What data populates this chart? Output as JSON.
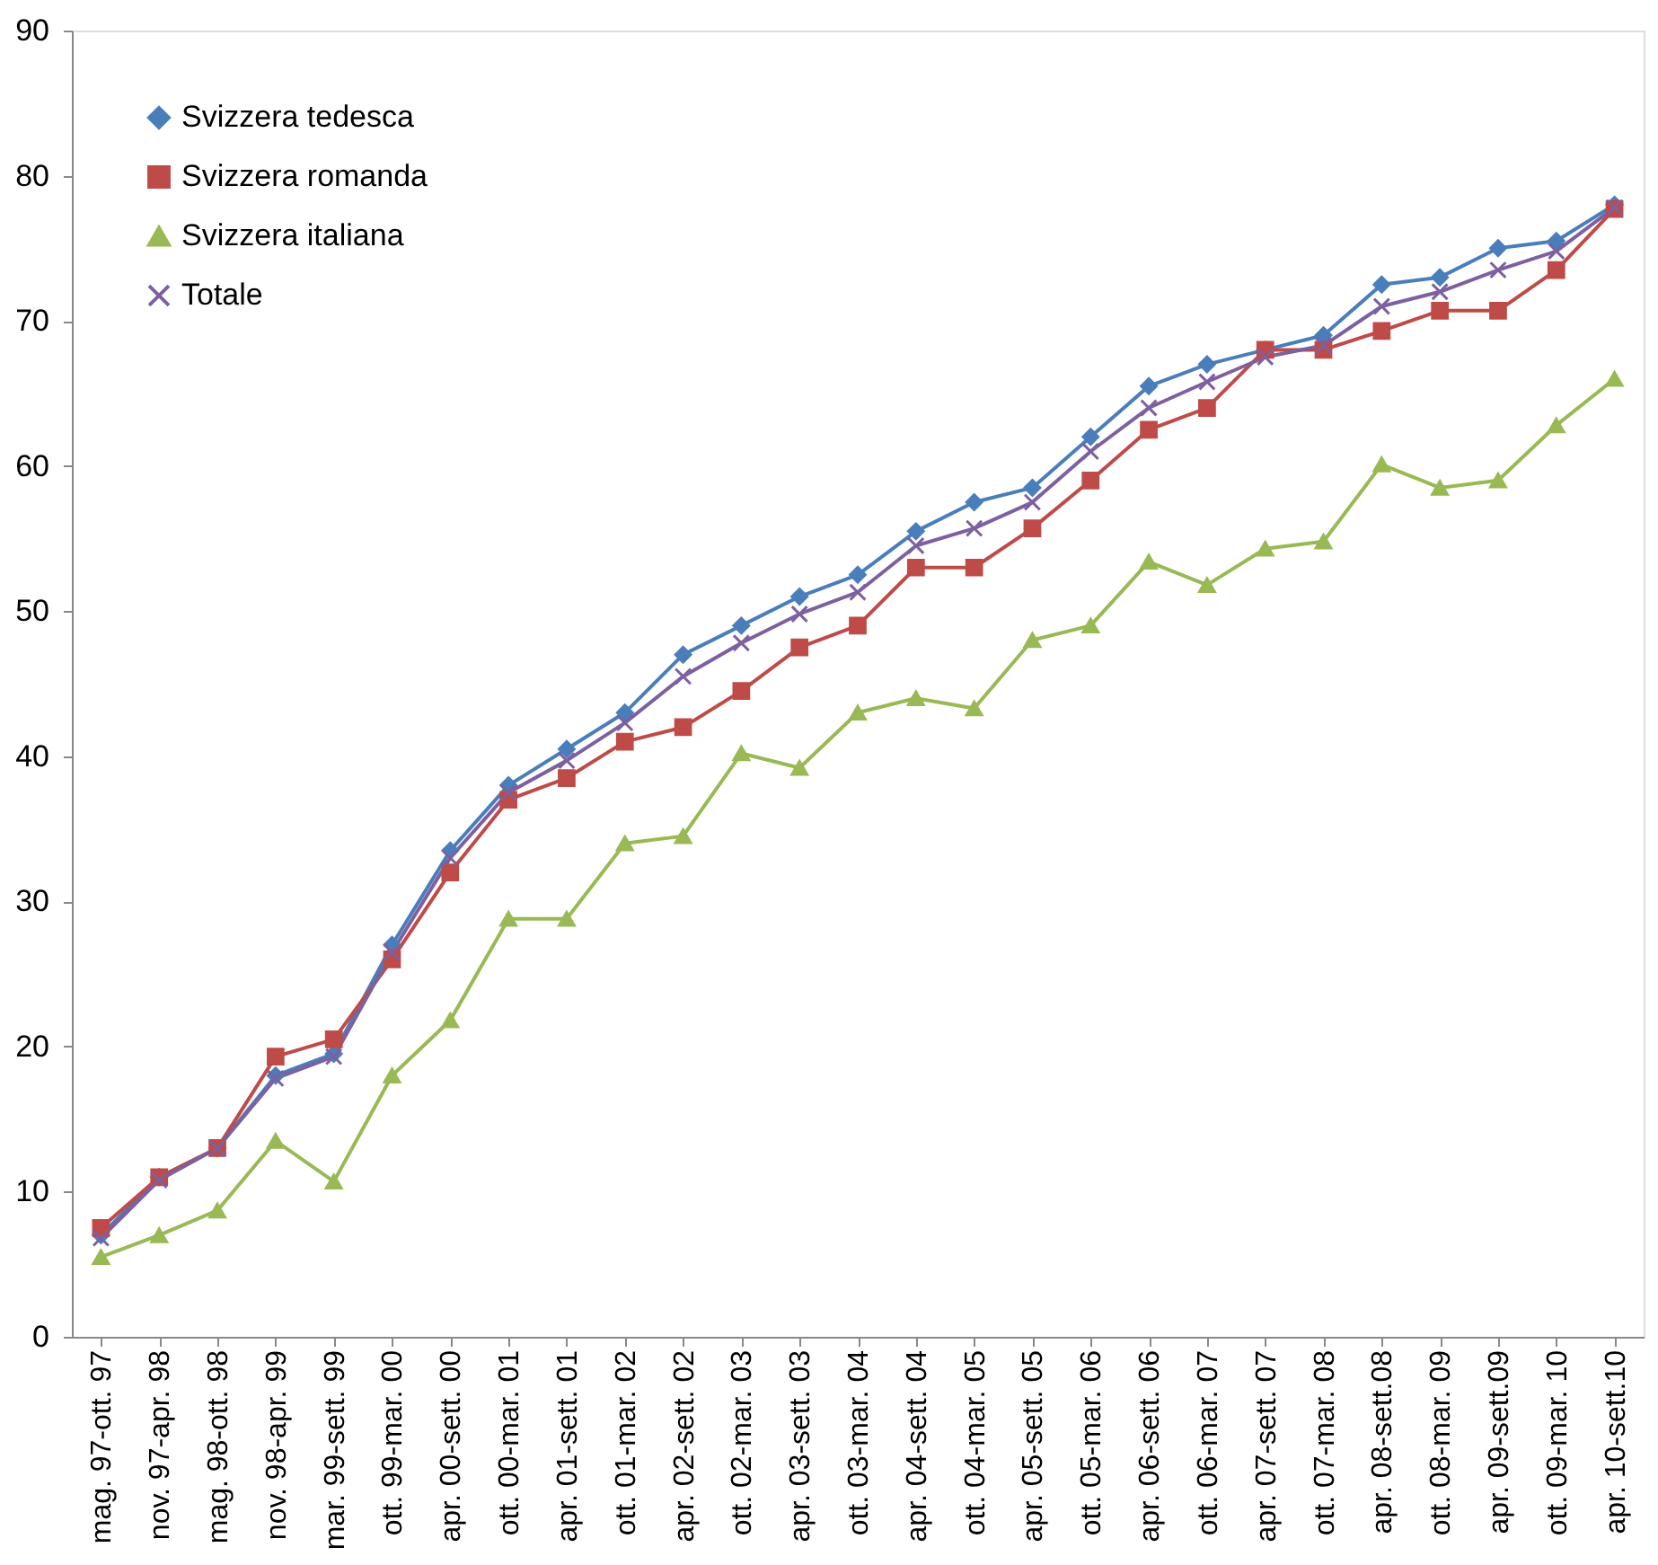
{
  "chart_data": {
    "type": "line",
    "categories": [
      "mag. 97-ott. 97",
      "nov. 97-apr. 98",
      "mag. 98-ott. 98",
      "nov. 98-apr. 99",
      "mar. 99-sett. 99",
      "ott. 99-mar. 00",
      "apr. 00-sett. 00",
      "ott. 00-mar. 01",
      "apr. 01-sett. 01",
      "ott. 01-mar. 02",
      "apr. 02-sett. 02",
      "ott. 02-mar. 03",
      "apr. 03-sett. 03",
      "ott. 03-mar. 04",
      "apr. 04-sett. 04",
      "ott. 04-mar. 05",
      "apr. 05-sett. 05",
      "ott. 05-mar. 06",
      "apr. 06-sett. 06",
      "ott. 06-mar. 07",
      "apr. 07-sett. 07",
      "ott. 07-mar. 08",
      "apr. 08-sett.08",
      "ott. 08-mar. 09",
      "apr. 09-sett.09",
      "ott. 09-mar. 10",
      "apr. 10-sett.10"
    ],
    "series": [
      {
        "name": "Svizzera tedesca",
        "color": "#4a7ebb",
        "marker": "diamond",
        "values": [
          7,
          11,
          13,
          18,
          19.5,
          27,
          33.5,
          38,
          40.5,
          43,
          47,
          49,
          51,
          52.5,
          55.5,
          57.5,
          58.5,
          62,
          65.5,
          67,
          68,
          69,
          72.5,
          73,
          75,
          75.5,
          78
        ]
      },
      {
        "name": "Svizzera romanda",
        "color": "#be4b48",
        "marker": "square",
        "values": [
          7.5,
          11,
          13,
          19.3,
          20.5,
          26,
          32,
          37,
          38.5,
          41,
          42,
          44.5,
          47.5,
          49,
          53,
          53,
          55.7,
          59,
          62.5,
          64,
          68,
          68,
          69.3,
          70.7,
          70.7,
          73.5,
          77.7
        ]
      },
      {
        "name": "Svizzera italiana",
        "color": "#98b954",
        "marker": "triangle",
        "values": [
          5.5,
          7,
          8.7,
          13.5,
          10.7,
          18,
          21.8,
          28.8,
          28.8,
          34,
          34.5,
          40.2,
          39.2,
          43,
          44,
          43.3,
          48,
          49,
          53.4,
          51.8,
          54.3,
          54.8,
          60.1,
          58.5,
          59,
          62.8,
          66
        ]
      },
      {
        "name": "Totale",
        "color": "#7d60a0",
        "marker": "cross",
        "values": [
          6.8,
          10.8,
          13,
          17.8,
          19.3,
          26.5,
          33,
          37.5,
          39.7,
          42.3,
          45.5,
          47.8,
          49.8,
          51.3,
          54.5,
          55.7,
          57.5,
          61,
          64,
          65.8,
          67.5,
          68.3,
          71,
          72,
          73.5,
          74.8,
          77.8
        ]
      }
    ],
    "ylim": [
      0,
      90
    ],
    "yticks": [
      0,
      10,
      20,
      30,
      40,
      50,
      60,
      70,
      80,
      90
    ],
    "grid": false,
    "legend": "top left"
  }
}
